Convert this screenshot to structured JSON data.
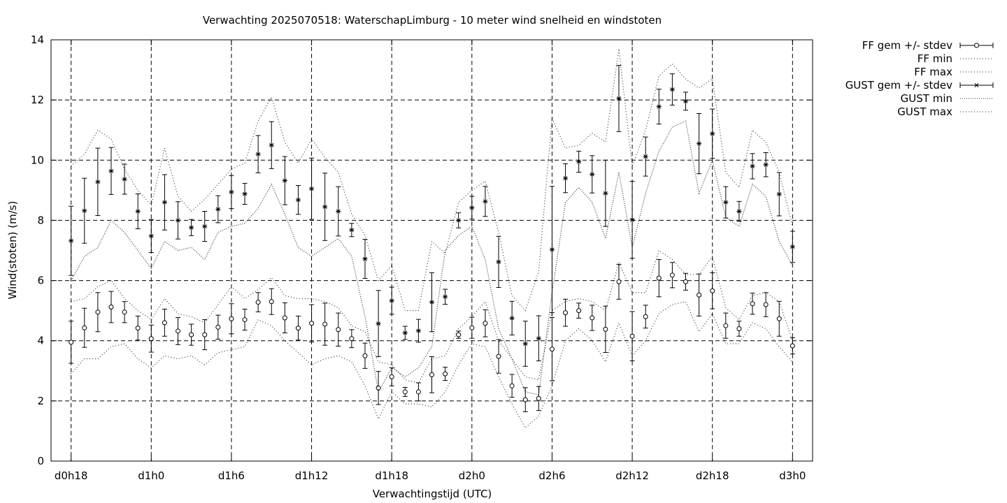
{
  "chart_data": {
    "type": "line",
    "title": "Verwachting 2025070518: WaterschapLimburg - 10 meter wind snelheid en windstoten",
    "xlabel": "Verwachtingstijd (UTC)",
    "ylabel": "Wind(stoten) (m/s)",
    "xlim": [
      -1.5,
      55.5
    ],
    "ylim": [
      0,
      14
    ],
    "yticks": [
      0,
      2,
      4,
      6,
      8,
      10,
      12,
      14
    ],
    "xticks": [
      {
        "x": 0,
        "label": "d0h18"
      },
      {
        "x": 6,
        "label": "d1h0"
      },
      {
        "x": 12,
        "label": "d1h6"
      },
      {
        "x": 18,
        "label": "d1h12"
      },
      {
        "x": 24,
        "label": "d1h18"
      },
      {
        "x": 30,
        "label": "d2h0"
      },
      {
        "x": 36,
        "label": "d2h6"
      },
      {
        "x": 42,
        "label": "d2h12"
      },
      {
        "x": 48,
        "label": "d2h18"
      },
      {
        "x": 54,
        "label": "d3h0"
      }
    ],
    "grid": true,
    "legend_position": "outside-right",
    "x": [
      0,
      1,
      2,
      3,
      4,
      5,
      6,
      7,
      8,
      9,
      10,
      11,
      12,
      13,
      14,
      15,
      16,
      17,
      18,
      19,
      20,
      21,
      22,
      23,
      24,
      25,
      26,
      27,
      28,
      29,
      30,
      31,
      32,
      33,
      34,
      35,
      36,
      37,
      38,
      39,
      40,
      41,
      42,
      43,
      44,
      45,
      46,
      47,
      48,
      49,
      50,
      51,
      52,
      53,
      54
    ],
    "series": [
      {
        "name": "FF gem +/- stdev",
        "kind": "errorbar",
        "marker": "circle",
        "values": [
          3.95,
          4.43,
          4.95,
          5.12,
          4.95,
          4.42,
          4.07,
          4.6,
          4.32,
          4.2,
          4.2,
          4.45,
          4.73,
          4.7,
          5.28,
          5.3,
          4.76,
          4.42,
          4.58,
          4.55,
          4.37,
          4.07,
          3.5,
          2.43,
          2.8,
          2.3,
          2.3,
          2.87,
          2.9,
          4.2,
          4.43,
          4.58,
          3.48,
          2.5,
          2.04,
          2.08,
          3.72,
          4.93,
          5.0,
          4.76,
          4.38,
          5.96,
          4.15,
          4.8,
          6.08,
          6.18,
          5.96,
          5.52,
          5.66,
          4.5,
          4.4,
          5.23,
          5.2,
          4.73,
          3.83
        ],
        "stdev": [
          0.7,
          0.65,
          0.65,
          0.52,
          0.35,
          0.4,
          0.45,
          0.45,
          0.45,
          0.35,
          0.5,
          0.4,
          0.5,
          0.35,
          0.32,
          0.43,
          0.5,
          0.4,
          0.62,
          0.7,
          0.55,
          0.3,
          0.42,
          0.55,
          0.3,
          0.15,
          0.3,
          0.6,
          0.22,
          0.12,
          0.35,
          0.45,
          0.56,
          0.38,
          0.4,
          0.4,
          1.05,
          0.45,
          0.25,
          0.42,
          0.77,
          0.58,
          0.82,
          0.38,
          0.62,
          0.42,
          0.28,
          0.7,
          0.6,
          0.42,
          0.25,
          0.35,
          0.4,
          0.58,
          0.27
        ]
      },
      {
        "name": "FF min",
        "kind": "line",
        "dash": "1,3",
        "values": [
          2.9,
          3.4,
          3.4,
          3.8,
          3.9,
          3.4,
          3.1,
          3.5,
          3.4,
          3.5,
          3.2,
          3.6,
          3.7,
          3.8,
          4.7,
          4.5,
          4.0,
          3.6,
          3.2,
          3.4,
          3.5,
          3.3,
          2.5,
          1.4,
          2.3,
          1.9,
          1.9,
          1.8,
          2.3,
          3.2,
          3.9,
          3.8,
          2.8,
          1.9,
          1.1,
          1.5,
          2.5,
          4.0,
          4.4,
          4.0,
          3.3,
          4.6,
          3.5,
          4.0,
          4.9,
          5.2,
          5.3,
          4.3,
          4.9,
          3.9,
          3.9,
          4.6,
          4.4,
          3.8,
          3.3
        ]
      },
      {
        "name": "FF max",
        "kind": "line",
        "dash": "1,3",
        "values": [
          5.3,
          5.4,
          5.8,
          6.0,
          5.4,
          5.0,
          4.7,
          5.4,
          4.9,
          4.8,
          4.6,
          5.2,
          5.8,
          5.4,
          5.7,
          6.1,
          5.5,
          5.4,
          5.4,
          5.3,
          5.1,
          4.5,
          4.3,
          3.3,
          3.2,
          2.7,
          2.6,
          3.4,
          3.5,
          4.4,
          4.8,
          5.3,
          4.0,
          3.4,
          2.8,
          2.7,
          5.0,
          5.3,
          5.4,
          5.3,
          5.0,
          6.6,
          5.6,
          5.6,
          7.0,
          6.7,
          6.2,
          6.2,
          6.8,
          5.1,
          4.7,
          5.5,
          5.6,
          5.3,
          4.0
        ]
      },
      {
        "name": "GUST gem +/- stdev",
        "kind": "errorbar",
        "marker": "star",
        "values": [
          7.32,
          8.32,
          9.28,
          9.64,
          9.37,
          8.3,
          7.48,
          8.6,
          8.0,
          7.76,
          7.8,
          8.37,
          8.94,
          8.88,
          10.2,
          10.5,
          9.32,
          8.68,
          9.05,
          8.45,
          8.3,
          7.68,
          6.72,
          4.57,
          5.33,
          4.26,
          4.33,
          5.28,
          5.46,
          8.0,
          8.42,
          8.63,
          6.62,
          4.75,
          3.9,
          4.08,
          7.03,
          9.4,
          9.95,
          9.53,
          8.9,
          12.05,
          8.02,
          10.12,
          11.78,
          12.35,
          11.96,
          10.55,
          10.88,
          8.6,
          8.3,
          9.8,
          9.85,
          8.87,
          7.12
        ],
        "stdev": [
          1.15,
          1.08,
          1.12,
          0.78,
          0.5,
          0.58,
          0.55,
          0.92,
          0.62,
          0.27,
          0.5,
          0.45,
          0.55,
          0.35,
          0.62,
          0.78,
          0.8,
          0.48,
          1.02,
          1.12,
          0.82,
          0.22,
          0.65,
          1.1,
          0.45,
          0.22,
          0.38,
          0.98,
          0.25,
          0.25,
          0.38,
          0.5,
          0.85,
          0.56,
          0.75,
          0.75,
          2.1,
          0.48,
          0.35,
          0.62,
          1.1,
          1.1,
          1.28,
          0.65,
          0.58,
          0.52,
          0.3,
          1.0,
          0.82,
          0.52,
          0.33,
          0.42,
          0.4,
          0.72,
          0.52
        ]
      },
      {
        "name": "GUST min",
        "kind": "line",
        "dash": "1,2",
        "values": [
          6.0,
          6.8,
          7.1,
          8.0,
          7.6,
          7.0,
          6.4,
          7.3,
          7.0,
          7.1,
          6.7,
          7.6,
          7.8,
          7.9,
          8.4,
          9.2,
          8.2,
          7.1,
          6.8,
          7.1,
          7.4,
          6.8,
          4.8,
          2.3,
          3.1,
          2.8,
          3.1,
          3.8,
          7.0,
          7.5,
          7.8,
          6.7,
          4.4,
          3.4,
          2.3,
          2.2,
          5.6,
          8.6,
          9.1,
          8.6,
          7.4,
          9.6,
          7.1,
          8.9,
          10.3,
          11.1,
          11.3,
          8.9,
          10.0,
          8.1,
          7.8,
          9.2,
          8.8,
          7.3,
          6.5
        ]
      },
      {
        "name": "GUST max",
        "kind": "line",
        "dash": "1,3",
        "values": [
          9.8,
          10.2,
          11.0,
          10.7,
          9.7,
          9.0,
          8.5,
          10.4,
          8.8,
          8.3,
          8.7,
          9.2,
          9.7,
          9.9,
          11.3,
          12.1,
          10.6,
          9.9,
          10.7,
          10.1,
          9.6,
          8.2,
          7.5,
          6.0,
          6.5,
          5.0,
          5.0,
          7.3,
          6.9,
          8.6,
          9.0,
          9.3,
          7.6,
          5.5,
          5.0,
          6.3,
          11.4,
          10.4,
          10.5,
          10.9,
          10.6,
          13.7,
          9.8,
          11.0,
          12.8,
          13.2,
          12.7,
          12.4,
          12.7,
          9.6,
          9.1,
          11.0,
          10.6,
          9.6,
          7.8
        ]
      }
    ]
  }
}
